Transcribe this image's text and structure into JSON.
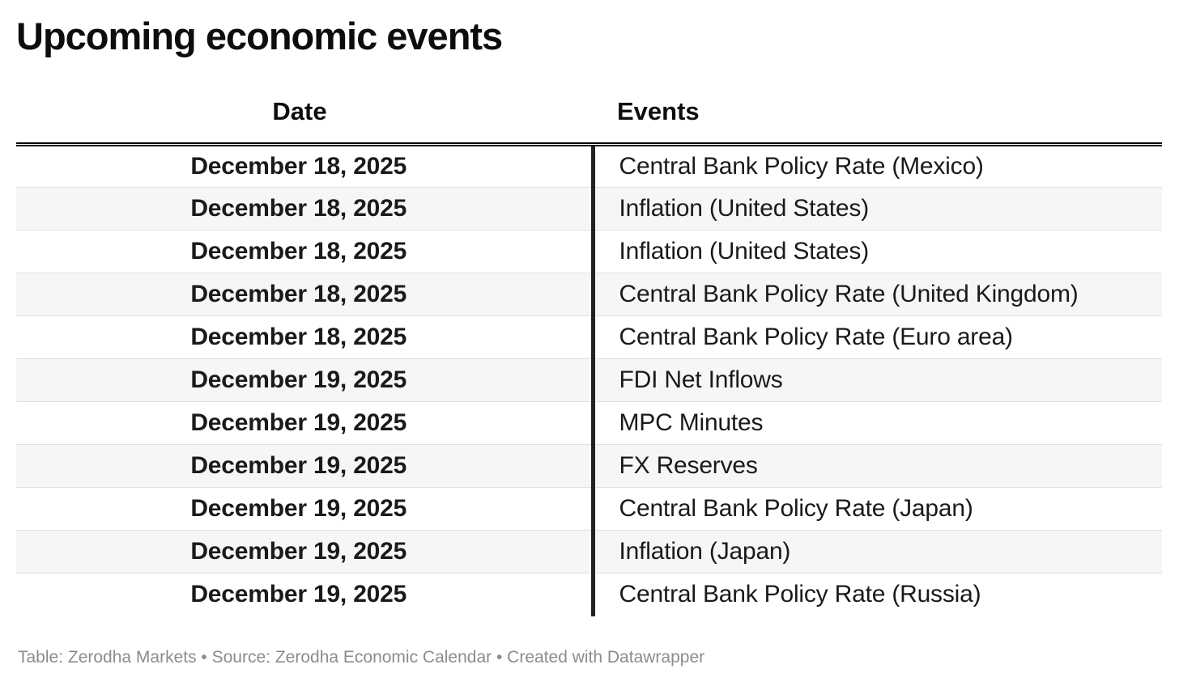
{
  "chart_data": {
    "type": "table",
    "title": "Upcoming economic events",
    "columns": [
      "Date",
      "Events"
    ],
    "rows": [
      {
        "date": "December 18, 2025",
        "event": "Central Bank Policy Rate (Mexico)"
      },
      {
        "date": "December 18, 2025",
        "event": "Inflation (United States)"
      },
      {
        "date": "December 18, 2025",
        "event": "Inflation (United States)"
      },
      {
        "date": "December 18, 2025",
        "event": "Central Bank Policy Rate (United Kingdom)"
      },
      {
        "date": "December 18, 2025",
        "event": "Central Bank Policy Rate (Euro area)"
      },
      {
        "date": "December 19, 2025",
        "event": "FDI Net Inflows"
      },
      {
        "date": "December 19, 2025",
        "event": "MPC Minutes"
      },
      {
        "date": "December 19, 2025",
        "event": "FX Reserves"
      },
      {
        "date": "December 19, 2025",
        "event": "Central Bank Policy Rate (Japan)"
      },
      {
        "date": "December 19, 2025",
        "event": "Inflation (Japan)"
      },
      {
        "date": "December 19, 2025",
        "event": "Central Bank Policy Rate (Russia)"
      }
    ],
    "footer": "Table: Zerodha Markets • Source: Zerodha Economic Calendar • Created with Datawrapper",
    "layout_hints": {
      "zebra_striping": true,
      "date_column_align": "center",
      "events_column_align": "left"
    }
  },
  "colors": {
    "background": "#ffffff",
    "text": "#1a1a1a",
    "header_rule": "#000000",
    "column_divider": "#222222",
    "row_separator": "#e0e0e0",
    "row_alt_background": "#f6f6f6",
    "footer_text": "#8c8c8c"
  }
}
